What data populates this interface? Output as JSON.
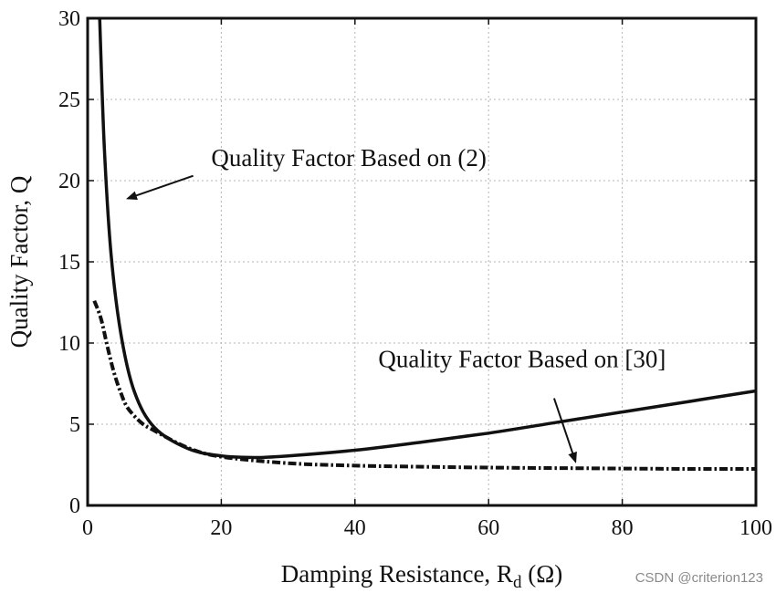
{
  "chart_data": {
    "type": "line",
    "xlabel": "Damping Resistance, R",
    "xlabel_subscript": "d",
    "xlabel_unit": " (Ω)",
    "ylabel": "Quality Factor, Q",
    "xlim": [
      0,
      100
    ],
    "ylim": [
      0,
      30
    ],
    "xticks": [
      0,
      20,
      40,
      60,
      80,
      100
    ],
    "yticks": [
      0,
      5,
      10,
      15,
      20,
      25,
      30
    ],
    "grid": true,
    "series": [
      {
        "style": "solid",
        "color": "#111111",
        "x": [
          1.8,
          2.5,
          3.5,
          5,
          7,
          10,
          15,
          20,
          25,
          30,
          40,
          50,
          60,
          70,
          80,
          90,
          100
        ],
        "y": [
          30,
          22,
          15.5,
          10.5,
          7,
          4.8,
          3.5,
          3.05,
          2.95,
          3.05,
          3.4,
          3.9,
          4.45,
          5.1,
          5.75,
          6.4,
          7.05
        ]
      },
      {
        "style": "dashdot",
        "color": "#111111",
        "x": [
          1,
          2,
          3,
          4,
          5,
          6,
          8,
          10,
          15,
          20,
          30,
          40,
          50,
          60,
          70,
          80,
          90,
          100
        ],
        "y": [
          12.6,
          11.5,
          9.7,
          8.1,
          6.9,
          6.0,
          5.1,
          4.6,
          3.55,
          3.0,
          2.6,
          2.45,
          2.38,
          2.33,
          2.3,
          2.27,
          2.25,
          2.25
        ]
      }
    ],
    "annotations": [
      {
        "text": "Quality Factor Based on (2)",
        "text_at": [
          18.5,
          20.9
        ],
        "arrow_from": [
          15.8,
          20.3
        ],
        "arrow_to": [
          6.0,
          18.9
        ]
      },
      {
        "text": "Quality Factor Based on [30]",
        "text_at": [
          43.5,
          8.5
        ],
        "arrow_from": [
          69.8,
          6.6
        ],
        "arrow_to": [
          73.0,
          2.7
        ]
      }
    ]
  },
  "watermark": "CSDN @criterion123"
}
